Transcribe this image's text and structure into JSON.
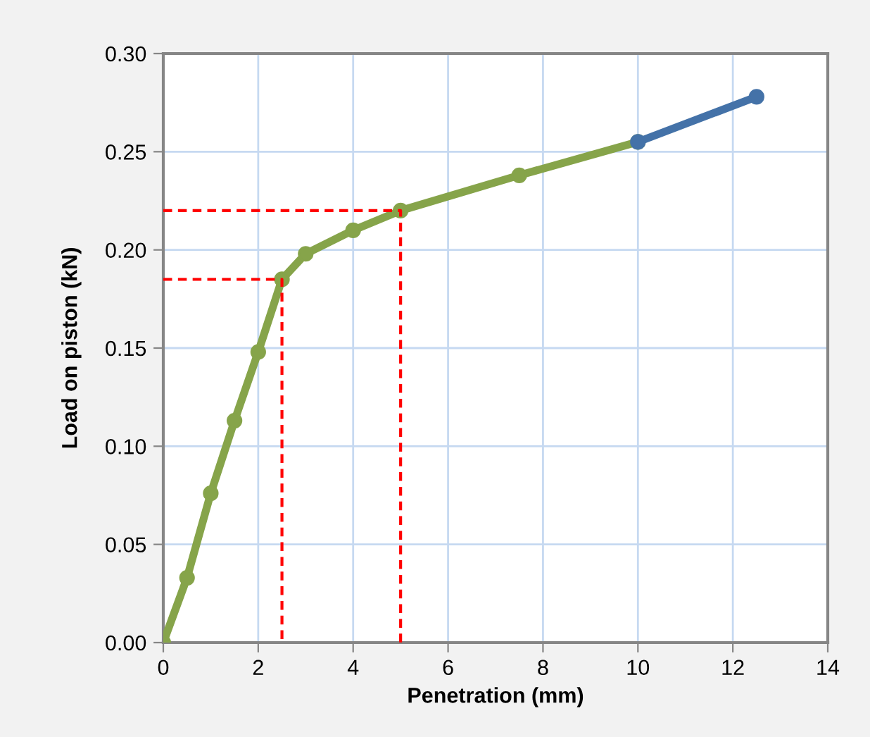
{
  "chart_data": {
    "type": "line",
    "xlabel": "Penetration (mm)",
    "ylabel": "Load on piston (kN)",
    "xlim": [
      0,
      14
    ],
    "xticks": [
      0,
      2,
      4,
      6,
      8,
      10,
      12,
      14
    ],
    "ylim": [
      0,
      0.3
    ],
    "yticks": [
      {
        "value": 0,
        "label": "0.00"
      },
      {
        "value": 0.05,
        "label": "0.05"
      },
      {
        "value": 0.1,
        "label": "0.10"
      },
      {
        "value": 0.15,
        "label": "0.15"
      },
      {
        "value": 0.2,
        "label": "0.20"
      },
      {
        "value": 0.25,
        "label": "0.25"
      },
      {
        "value": 0.3,
        "label": "0.30"
      }
    ],
    "grid": true,
    "marker": "circle",
    "line_style": "solid",
    "series": [
      {
        "color": "#86a44a",
        "x": [
          0,
          0.5,
          1,
          1.5,
          2,
          2.5,
          3,
          4,
          5,
          7.5,
          10
        ],
        "values": [
          0,
          0.033,
          0.076,
          0.113,
          0.148,
          0.185,
          0.198,
          0.21,
          0.22,
          0.238,
          0.255
        ]
      },
      {
        "color": "#4472a8",
        "x": [
          10,
          12.5
        ],
        "values": [
          0.255,
          0.278
        ]
      },
      {
        "color": "#ff0000",
        "marker": "none",
        "line_style": "dashed",
        "x": [
          0,
          2.5,
          2.5
        ],
        "values": [
          0.185,
          0.185,
          0
        ]
      },
      {
        "color": "#ff0000",
        "marker": "none",
        "line_style": "dashed",
        "x": [
          0,
          5,
          5
        ],
        "values": [
          0.22,
          0.22,
          0
        ]
      }
    ]
  }
}
